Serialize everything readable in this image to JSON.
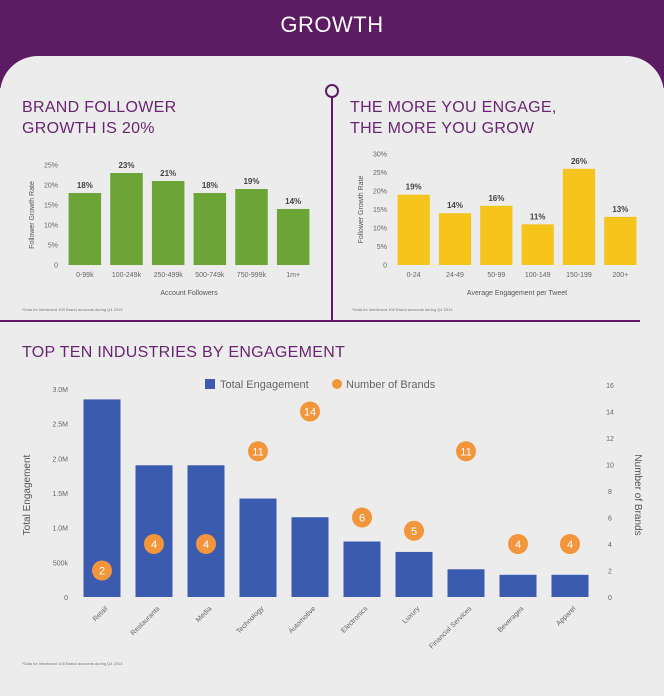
{
  "page": {
    "title": "GROWTH"
  },
  "chart_data": [
    {
      "type": "bar",
      "title": "BRAND FOLLOWER GROWTH IS 20%",
      "categories": [
        "0-99k",
        "100-249k",
        "250-499k",
        "500-749k",
        "750-999k",
        "1m+"
      ],
      "values": [
        18,
        23,
        21,
        18,
        19,
        14
      ],
      "value_labels": [
        "18%",
        "23%",
        "21%",
        "18%",
        "19%",
        "14%"
      ],
      "xlabel": "Account Followers",
      "ylabel": "Follower Growth Rate",
      "ylim": [
        0,
        25
      ],
      "yticks": [
        "0",
        "5%",
        "10%",
        "15%",
        "20%",
        "25%"
      ],
      "color": "#6aa535",
      "footnote": "*Data for Interbrand 100 Brand accounts during Q4 2013"
    },
    {
      "type": "bar",
      "title": "THE MORE YOU ENGAGE, THE MORE YOU GROW",
      "categories": [
        "0-24",
        "24-49",
        "50-99",
        "100-149",
        "150-199",
        "200+"
      ],
      "values": [
        19,
        14,
        16,
        11,
        26,
        13
      ],
      "value_labels": [
        "19%",
        "14%",
        "16%",
        "11%",
        "26%",
        "13%"
      ],
      "xlabel": "Average Engagement per Tweet",
      "ylabel": "Follower Growth Rate",
      "ylim": [
        0,
        30
      ],
      "yticks": [
        "0",
        "5%",
        "10%",
        "15%",
        "20%",
        "25%",
        "30%"
      ],
      "color": "#f5c51e",
      "footnote": "*Data for Interbrand 100 Brand accounts during Q4 2013"
    },
    {
      "type": "bar",
      "title": "TOP TEN INDUSTRIES BY ENGAGEMENT",
      "categories": [
        "Retail",
        "Restaurants",
        "Media",
        "Technology",
        "Automotive",
        "Electronics",
        "Luxury",
        "Financial Services",
        "Beverages",
        "Apparel"
      ],
      "series": [
        {
          "name": "Total Engagement",
          "values": [
            2850000,
            1900000,
            1900000,
            1420000,
            1150000,
            800000,
            650000,
            400000,
            320000,
            320000
          ],
          "color": "#3a5bb0"
        },
        {
          "name": "Number of Brands",
          "values": [
            2,
            4,
            4,
            11,
            14,
            6,
            5,
            11,
            4,
            4
          ],
          "color": "#f3953b"
        }
      ],
      "ylabel": "Total Engagement",
      "y2label": "Number of Brands",
      "ylim": [
        0,
        3000000
      ],
      "y2lim": [
        0,
        16
      ],
      "yticks": [
        "0",
        "500k",
        "1.0M",
        "1.5M",
        "2.0M",
        "2.5M",
        "3.0M"
      ],
      "y2ticks": [
        "0",
        "2",
        "4",
        "6",
        "8",
        "10",
        "12",
        "14",
        "16"
      ],
      "footnote": "*Data for Interbrand 100 Brand accounts during Q4 2013"
    }
  ]
}
